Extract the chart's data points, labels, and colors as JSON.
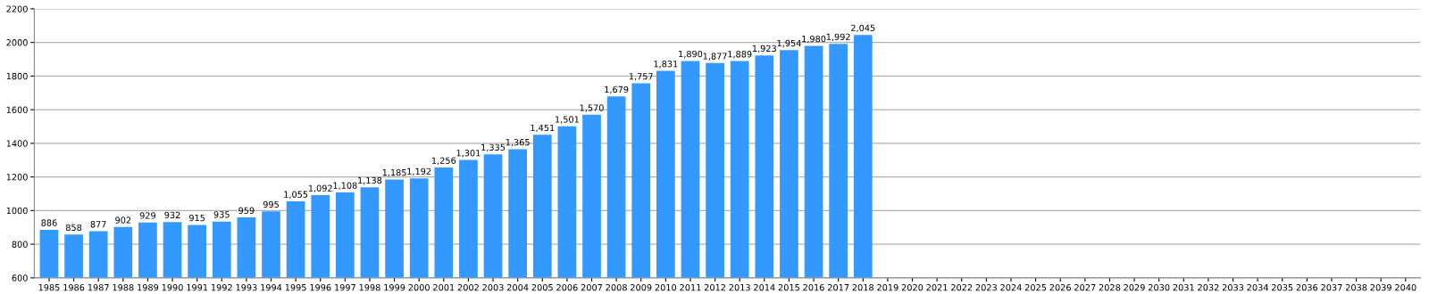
{
  "chart_data": {
    "type": "bar",
    "categories": [
      "1985",
      "1986",
      "1987",
      "1988",
      "1989",
      "1990",
      "1991",
      "1992",
      "1993",
      "1994",
      "1995",
      "1996",
      "1997",
      "1998",
      "1999",
      "2000",
      "2001",
      "2002",
      "2003",
      "2004",
      "2005",
      "2006",
      "2007",
      "2008",
      "2009",
      "2010",
      "2011",
      "2012",
      "2013",
      "2014",
      "2015",
      "2016",
      "2017",
      "2018",
      "2019",
      "2020",
      "2021",
      "2022",
      "2023",
      "2024",
      "2025",
      "2026",
      "2027",
      "2028",
      "2029",
      "2030",
      "2031",
      "2032",
      "2033",
      "2034",
      "2035",
      "2036",
      "2037",
      "2038",
      "2039",
      "2040"
    ],
    "values": [
      886,
      858,
      877,
      902,
      929,
      932,
      915,
      935,
      959,
      995,
      1055,
      1092,
      1108,
      1138,
      1185,
      1192,
      1256,
      1301,
      1335,
      1365,
      1451,
      1501,
      1570,
      1679,
      1757,
      1831,
      1890,
      1877,
      1889,
      1923,
      1954,
      1980,
      1992,
      2045,
      null,
      null,
      null,
      null,
      null,
      null,
      null,
      null,
      null,
      null,
      null,
      null,
      null,
      null,
      null,
      null,
      null,
      null,
      null,
      null,
      null,
      null
    ],
    "value_labels": [
      "886",
      "858",
      "877",
      "902",
      "929",
      "932",
      "915",
      "935",
      "959",
      "995",
      "1,055",
      "1,092",
      "1,108",
      "1,138",
      "1,185",
      "1,192",
      "1,256",
      "1,301",
      "1,335",
      "1,365",
      "1,451",
      "1,501",
      "1,570",
      "1,679",
      "1,757",
      "1,831",
      "1,890",
      "1,877",
      "1,889",
      "1,923",
      "1,954",
      "1,980",
      "1,992",
      "2,045",
      null,
      null,
      null,
      null,
      null,
      null,
      null,
      null,
      null,
      null,
      null,
      null,
      null,
      null,
      null,
      null,
      null,
      null,
      null,
      null,
      null,
      null
    ],
    "color": "#3399ff",
    "ylim": [
      600,
      2200
    ],
    "yticks": [
      600,
      800,
      1000,
      1200,
      1400,
      1600,
      1800,
      2000,
      2200
    ],
    "grid": "y"
  }
}
